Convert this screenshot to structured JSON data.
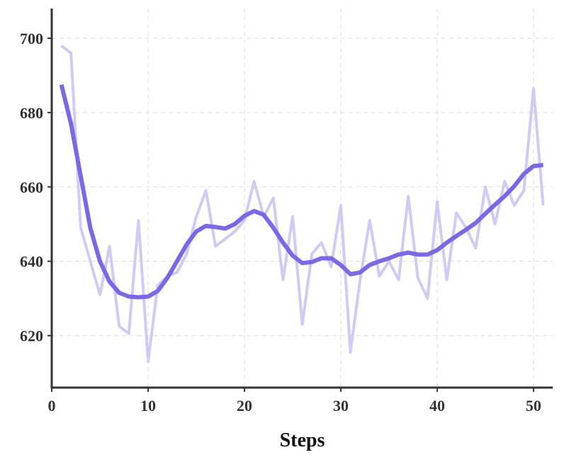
{
  "chart_data": {
    "type": "line",
    "title": "",
    "xlabel": "Steps",
    "ylabel": "",
    "xlim": [
      0,
      52
    ],
    "ylim": [
      606,
      708
    ],
    "xticks": [
      0,
      10,
      20,
      30,
      40,
      50
    ],
    "yticks": [
      620,
      640,
      660,
      680,
      700
    ],
    "grid": true,
    "legend": "none",
    "colors": {
      "raw": "#d1caf4",
      "smoothed": "#7b68e6",
      "axis": "#333333",
      "grid": "#dedede"
    },
    "x": [
      1,
      2,
      3,
      4,
      5,
      6,
      7,
      8,
      9,
      10,
      11,
      12,
      13,
      14,
      15,
      16,
      17,
      18,
      19,
      20,
      21,
      22,
      23,
      24,
      25,
      26,
      27,
      28,
      29,
      30,
      31,
      32,
      33,
      34,
      35,
      36,
      37,
      38,
      39,
      40,
      41,
      42,
      43,
      44,
      45,
      46,
      47,
      48,
      49,
      50,
      51
    ],
    "series": [
      {
        "role": "raw",
        "values": [
          698,
          696,
          649,
          640,
          631,
          644,
          622.5,
          620.5,
          651,
          613,
          633.5,
          636,
          637,
          642,
          652,
          659,
          644,
          646,
          648,
          651,
          661.5,
          652,
          657,
          635,
          652,
          623,
          642,
          645,
          638.5,
          655,
          615.5,
          635,
          651,
          636,
          640,
          635,
          657.5,
          635.5,
          630,
          656,
          635,
          653,
          649,
          643.5,
          660,
          650,
          661.5,
          655,
          659,
          686.5,
          655
        ]
      },
      {
        "role": "smoothed",
        "values": [
          687.5,
          677,
          663,
          649,
          640,
          634.5,
          631.5,
          630.5,
          630.3,
          630.5,
          632,
          635.5,
          640,
          644.5,
          648,
          649.5,
          649.2,
          648.8,
          650,
          652.2,
          653.5,
          652.5,
          649,
          645,
          641.5,
          639.5,
          639.8,
          640.8,
          640.8,
          639,
          636.5,
          637,
          639,
          640,
          640.8,
          641.8,
          642.3,
          641.8,
          641.8,
          643,
          645,
          646.8,
          648.5,
          650.3,
          652.8,
          655.2,
          657.5,
          660.2,
          663.5,
          665.6,
          665.9
        ]
      }
    ]
  }
}
